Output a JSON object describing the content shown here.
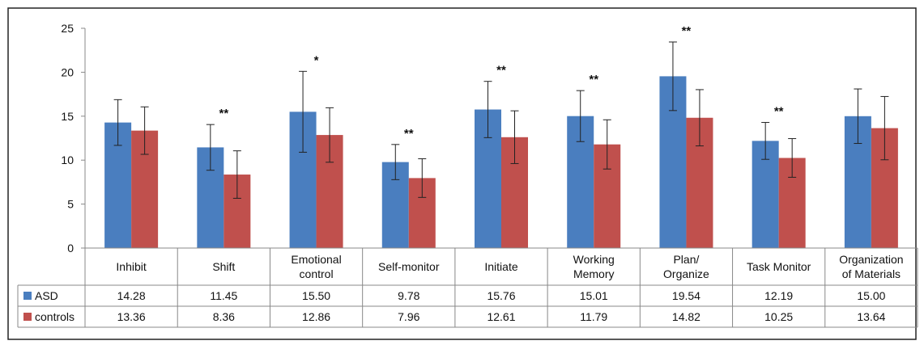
{
  "chart_data": {
    "type": "bar",
    "categories": [
      [
        "Inhibit"
      ],
      [
        "Shift"
      ],
      [
        "Emotional",
        "control"
      ],
      [
        "Self-monitor"
      ],
      [
        "Initiate"
      ],
      [
        "Working",
        "Memory"
      ],
      [
        "Plan/",
        "Organize"
      ],
      [
        "Task Monitor"
      ],
      [
        "Organization",
        "of Materials"
      ]
    ],
    "series": [
      {
        "name": "ASD",
        "color": "#4a7ebf",
        "values": [
          14.28,
          11.45,
          15.5,
          9.78,
          15.76,
          15.01,
          19.54,
          12.19,
          15.0
        ],
        "value_labels": [
          "14.28",
          "11.45",
          "15.50",
          "9.78",
          "15.76",
          "15.01",
          "19.54",
          "12.19",
          "15.00"
        ],
        "error": [
          2.6,
          2.6,
          4.6,
          2.0,
          3.2,
          2.9,
          3.9,
          2.1,
          3.1
        ]
      },
      {
        "name": "controls",
        "color": "#c0504d",
        "values": [
          13.36,
          8.36,
          12.86,
          7.96,
          12.61,
          11.79,
          14.82,
          10.25,
          13.64
        ],
        "value_labels": [
          "13.36",
          "8.36",
          "12.86",
          "7.96",
          "12.61",
          "11.79",
          "14.82",
          "10.25",
          "13.64"
        ],
        "error": [
          2.7,
          2.7,
          3.1,
          2.2,
          3.0,
          2.8,
          3.2,
          2.2,
          3.6
        ]
      }
    ],
    "significance": [
      "",
      "**",
      "*",
      "**",
      "**",
      "**",
      "**",
      "**",
      ""
    ],
    "ylim": [
      0,
      25
    ],
    "yticks": [
      0,
      5,
      10,
      15,
      20,
      25
    ],
    "grid": false,
    "legend": "data-table-left"
  }
}
